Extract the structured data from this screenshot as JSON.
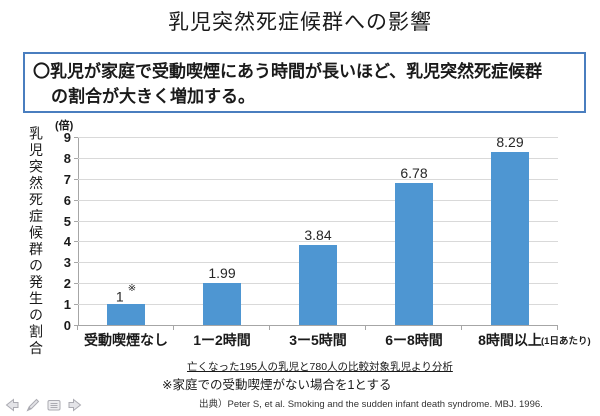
{
  "title": "乳児突然死症候群への影響",
  "summary_box": {
    "line1": "〇乳児が家庭で受動喫煙にあう時間が長いほど、乳児突然死症候群",
    "line2": "の割合が大きく増加する。"
  },
  "chart_data": {
    "type": "bar",
    "categories": [
      "受動喫煙なし",
      "1ー2時間",
      "3ー5時間",
      "6ー8時間",
      "8時間以上"
    ],
    "values": [
      1,
      1.99,
      3.84,
      6.78,
      8.29
    ],
    "value_labels": [
      "1",
      "1.99",
      "3.84",
      "6.78",
      "8.29"
    ],
    "first_value_note_mark": "※",
    "ylabel": "乳児突然死症候群の発生の割合",
    "y_unit_label": "(倍)",
    "x_unit_label": "(1日あたり)",
    "xlabel": "",
    "ylim": [
      0,
      9
    ],
    "ytick_step": 1,
    "grid": true,
    "legend_position": "none",
    "bar_color": "#4E96D2"
  },
  "notes": {
    "analysis_note": "亡くなった195人の乳児と780人の比較対象乳児より分析",
    "baseline_note": "※家庭での受動喫煙がない場合を1とする",
    "source": "出典）Peter S, et al. Smoking and the sudden infant death syndrome. MBJ. 1996."
  },
  "colors": {
    "bar": "#4E96D2",
    "summary_box_border": "#4A7EBF",
    "gridline": "#D9D9D9",
    "axis": "#A6A6A6",
    "toolbar_icon_fill": "#E4E4E8",
    "toolbar_icon_stroke": "#ABABB2"
  },
  "slideshow_toolbar": {
    "icons": [
      "previous-slide",
      "pen",
      "slide-menu",
      "next-slide"
    ]
  }
}
